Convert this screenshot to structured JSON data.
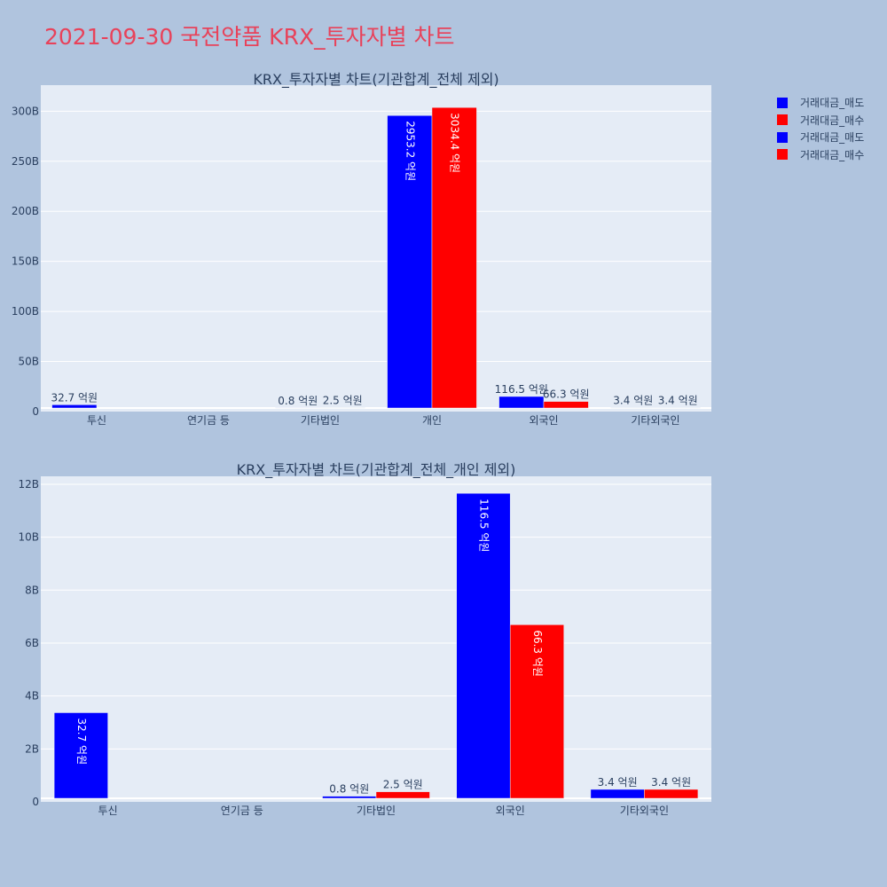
{
  "page_title": "2021-09-30 국전약품 KRX_투자자별 차트",
  "legend": [
    {
      "label": "거래대금_매도",
      "color": "#0000ff"
    },
    {
      "label": "거래대금_매수",
      "color": "#ff0000"
    },
    {
      "label": "거래대금_매도",
      "color": "#0000ff"
    },
    {
      "label": "거래대금_매수",
      "color": "#ff0000"
    }
  ],
  "chart_data": [
    {
      "type": "bar",
      "title": "KRX_투자자별 차트(기관합계_전체 제외)",
      "categories": [
        "투신",
        "연기금 등",
        "기타법인",
        "개인",
        "외국인",
        "기타외국인"
      ],
      "series": [
        {
          "name": "거래대금_매도",
          "color": "#0000ff",
          "values": [
            3270000000,
            0,
            80000000,
            295320000000,
            11650000000,
            340000000
          ],
          "labels": [
            "32.7 억원",
            "",
            "0.8 억원",
            "2953.2 억원",
            "116.5 억원",
            "3.4 억원"
          ]
        },
        {
          "name": "거래대금_매수",
          "color": "#ff0000",
          "values": [
            0,
            0,
            250000000,
            303440000000,
            6630000000,
            340000000
          ],
          "labels": [
            "",
            "",
            "2.5 억원",
            "3034.4 억원",
            "66.3 억원",
            "3.4 억원"
          ]
        }
      ],
      "yticks": [
        0,
        50000000000,
        100000000000,
        150000000000,
        200000000000,
        250000000000,
        300000000000
      ],
      "ytick_labels": [
        "0",
        "50B",
        "100B",
        "150B",
        "200B",
        "250B",
        "300B"
      ],
      "ylim": [
        0,
        326000000000
      ],
      "grid": true
    },
    {
      "type": "bar",
      "title": "KRX_투자자별 차트(기관합계_전체_개인 제외)",
      "categories": [
        "투신",
        "연기금 등",
        "기타법인",
        "외국인",
        "기타외국인"
      ],
      "series": [
        {
          "name": "거래대금_매도",
          "color": "#0000ff",
          "values": [
            3270000000,
            0,
            80000000,
            11650000000,
            340000000
          ],
          "labels": [
            "32.7 억원",
            "",
            "0.8 억원",
            "116.5 억원",
            "3.4 억원"
          ]
        },
        {
          "name": "거래대금_매수",
          "color": "#ff0000",
          "values": [
            0,
            0,
            250000000,
            6630000000,
            340000000
          ],
          "labels": [
            "",
            "",
            "2.5 억원",
            "66.3 억원",
            "3.4 억원"
          ]
        }
      ],
      "yticks": [
        0,
        2000000000,
        4000000000,
        6000000000,
        8000000000,
        10000000000,
        12000000000
      ],
      "ytick_labels": [
        "0",
        "2B",
        "4B",
        "6B",
        "8B",
        "10B",
        "12B"
      ],
      "ylim": [
        0,
        12300000000
      ],
      "grid": true
    }
  ]
}
